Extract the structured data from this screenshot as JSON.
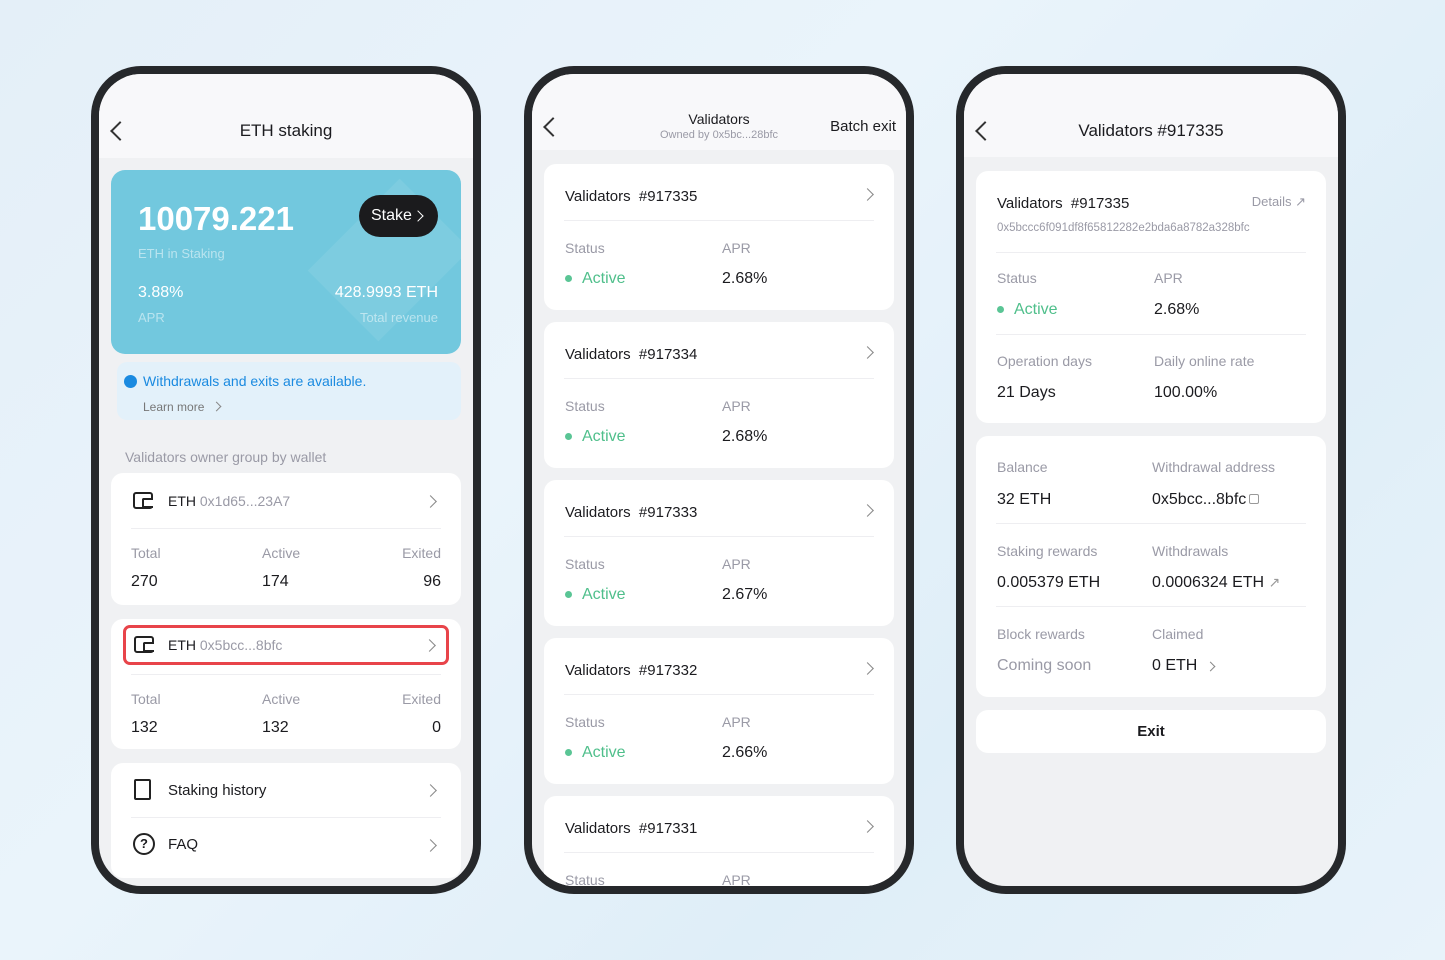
{
  "staking": {
    "title": "ETH staking",
    "amount": "10079.221",
    "amount_label": "ETH in Staking",
    "stake_button": "Stake",
    "apr": "3.88%",
    "apr_label": "APR",
    "revenue": "428.9993 ETH",
    "revenue_label": "Total revenue",
    "notice": "Withdrawals and exits are available.",
    "learn_more": "Learn more",
    "group_label": "Validators owner group by wallet",
    "wallets": [
      {
        "coin": "ETH",
        "address": "0x1d65...23A7",
        "total_label": "Total",
        "active_label": "Active",
        "exited_label": "Exited",
        "total": "270",
        "active": "174",
        "exited": "96"
      },
      {
        "coin": "ETH",
        "address": "0x5bcc...8bfc",
        "total_label": "Total",
        "active_label": "Active",
        "exited_label": "Exited",
        "total": "132",
        "active": "132",
        "exited": "0"
      }
    ],
    "links": [
      {
        "label": "Staking history",
        "icon": "document-icon"
      },
      {
        "label": "FAQ",
        "icon": "question-icon"
      }
    ],
    "highlight_color": "#e8444a",
    "card_color": "#72c8de"
  },
  "validators": {
    "title": "Validators",
    "subtitle": "Owned by 0x5bc...28bfc",
    "batch_exit": "Batch exit",
    "items": [
      {
        "name": "Validators  #917335",
        "status_label": "Status",
        "apr_label": "APR",
        "status": "Active",
        "apr": "2.68%"
      },
      {
        "name": "Validators  #917334",
        "status_label": "Status",
        "apr_label": "APR",
        "status": "Active",
        "apr": "2.68%"
      },
      {
        "name": "Validators  #917333",
        "status_label": "Status",
        "apr_label": "APR",
        "status": "Active",
        "apr": "2.67%"
      },
      {
        "name": "Validators  #917332",
        "status_label": "Status",
        "apr_label": "APR",
        "status": "Active",
        "apr": "2.66%"
      },
      {
        "name": "Validators  #917331",
        "status_label": "Status",
        "apr_label": "APR",
        "status": "",
        "apr": ""
      }
    ]
  },
  "detail": {
    "title": "Validators #917335",
    "name": "Validators  #917335",
    "details": "Details",
    "pubkey": "0x5bccc6f091df8f65812282e2bda6a8782a328bfc",
    "status_label": "Status",
    "status": "Active",
    "apr_label": "APR",
    "apr": "2.68%",
    "days_label": "Operation days",
    "days": "21 Days",
    "online_label": "Daily online rate",
    "online": "100.00%",
    "balance_label": "Balance",
    "balance": "32 ETH",
    "waddr_label": "Withdrawal address",
    "waddr": "0x5bcc...8bfc",
    "srew_label": "Staking rewards",
    "srew": "0.005379 ETH",
    "withdrawals_label": "Withdrawals",
    "withdrawals": "0.0006324 ETH",
    "brew_label": "Block rewards",
    "brew": "Coming soon",
    "claimed_label": "Claimed",
    "claimed": "0 ETH",
    "exit": "Exit"
  }
}
